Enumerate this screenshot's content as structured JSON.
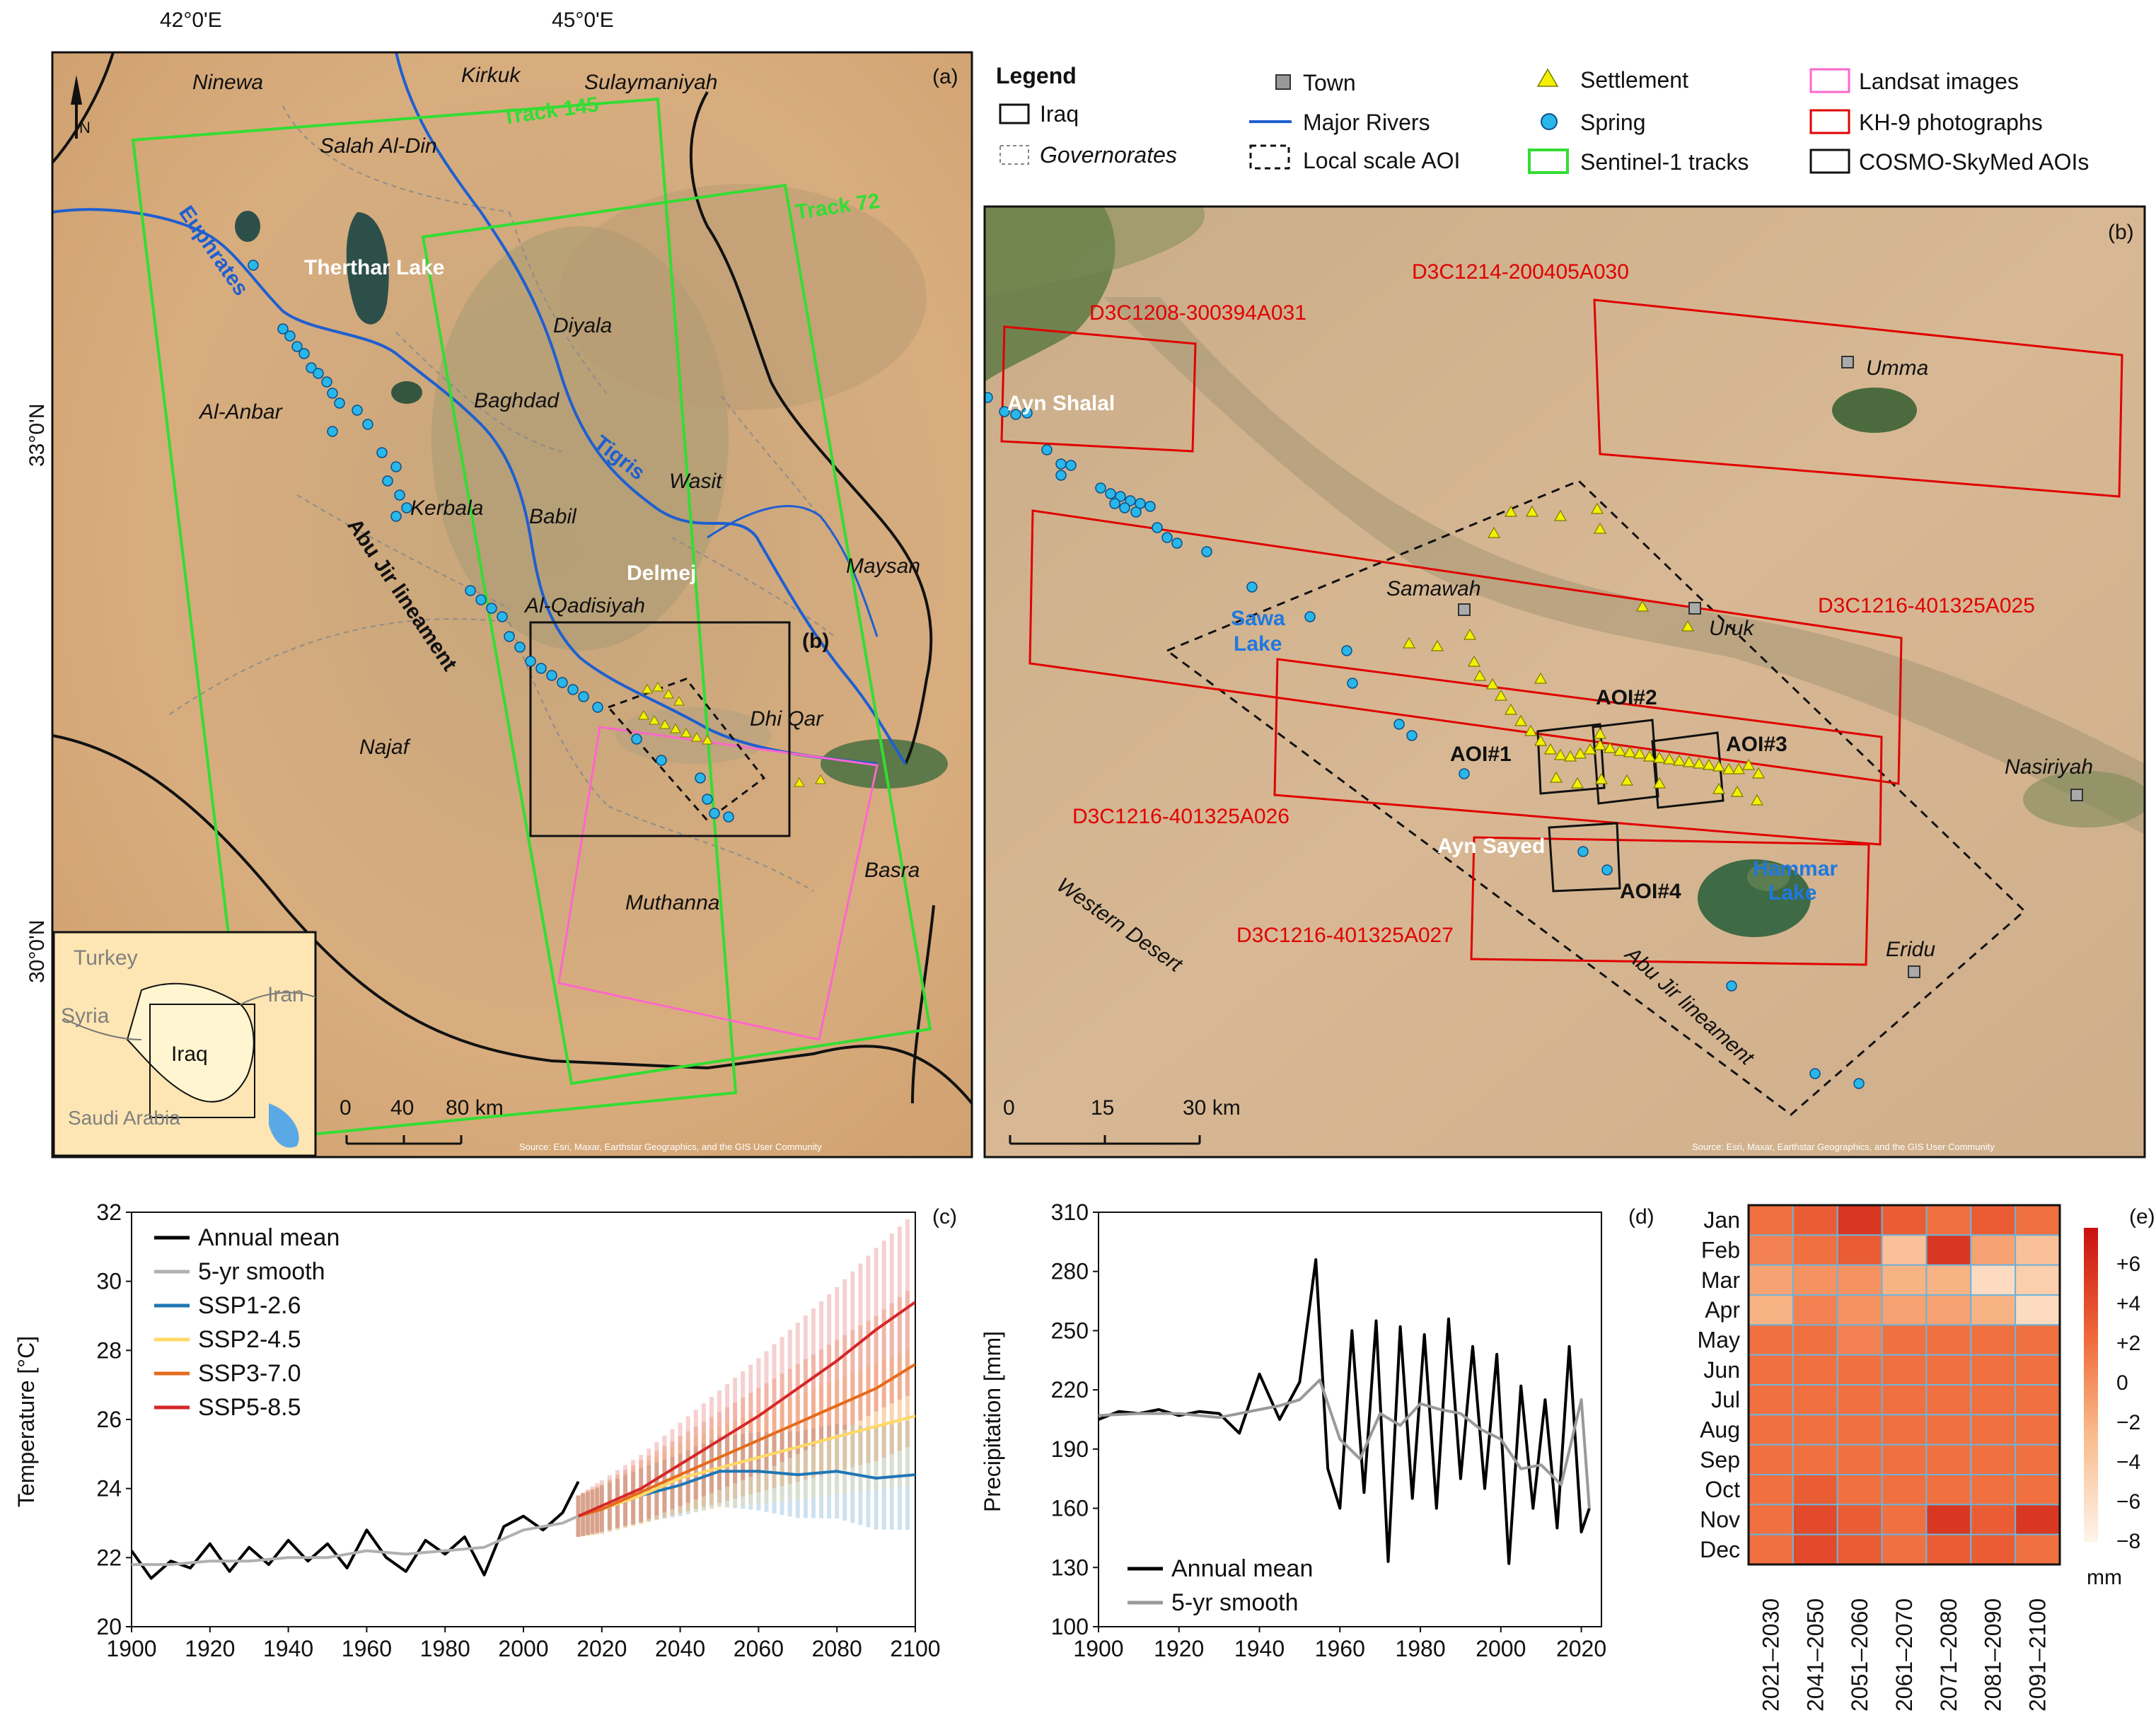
{
  "panel_a": {
    "label": "(a)",
    "lon_labels": [
      "42°0'E",
      "45°0'E"
    ],
    "lat_labels": [
      "33°0'N",
      "30°0'N"
    ],
    "governorates": [
      "Ninewa",
      "Kirkuk",
      "Sulaymaniyah",
      "Salah Al-Din",
      "Diyala",
      "Al-Anbar",
      "Baghdad",
      "Wasit",
      "Kerbala",
      "Babil",
      "Maysan",
      "Al-Qadisiyah",
      "Dhi Qar",
      "Najaf",
      "Muthanna",
      "Basra"
    ],
    "water": [
      "Euphrates",
      "Tigris",
      "Therthar Lake",
      "Delmej"
    ],
    "tracks": [
      "Track 145",
      "Track 72"
    ],
    "lineament": "Abu Jir lineament",
    "inset_box": "(b)",
    "scale": {
      "labels": [
        "0",
        "40",
        "80 km"
      ]
    },
    "inset_map": {
      "labels": [
        "Turkey",
        "Syria",
        "Iran",
        "Iraq",
        "Saudi Arabia"
      ]
    },
    "source": "Source: Esri, Maxar, Earthstar Geographics, and the GIS User Community"
  },
  "legend": {
    "title": "Legend",
    "items": [
      "Iraq",
      "Governorates",
      "Town",
      "Major Rivers",
      "Local scale AOI",
      "Settlement",
      "Spring",
      "Sentinel-1 tracks",
      "Landsat images",
      "KH-9 photographs",
      "COSMO-SkyMed AOIs"
    ]
  },
  "panel_b": {
    "label": "(b)",
    "photos": [
      "D3C1214-200405A030",
      "D3C1208-300394A031",
      "D3C1216-401325A025",
      "D3C1216-401325A026",
      "D3C1216-401325A027"
    ],
    "aois": [
      "AOI#1",
      "AOI#2",
      "AOI#3",
      "AOI#4"
    ],
    "towns": [
      "Umma",
      "Samawah",
      "Uruk",
      "Nasiriyah",
      "Eridu"
    ],
    "places": [
      "Ayn Shalal",
      "Ayn Sayed",
      "Western Desert",
      "Abu Jir lineament"
    ],
    "lakes": [
      "Sawa Lake",
      "Hammar Lake"
    ],
    "scale": {
      "labels": [
        "0",
        "15",
        "30 km"
      ]
    },
    "source": "Source: Esri, Maxar, Earthstar Geographics, and the GIS User Community"
  },
  "chart_data": [
    {
      "type": "line",
      "panel": "(c)",
      "ylabel": "Temperature [°C]",
      "xlim": [
        1900,
        2100
      ],
      "ylim": [
        20,
        32
      ],
      "yticks": [
        20,
        22,
        24,
        26,
        28,
        30,
        32
      ],
      "xticks": [
        1900,
        1920,
        1940,
        1960,
        1980,
        2000,
        2020,
        2040,
        2060,
        2080,
        2100
      ],
      "legend_position": "top-left",
      "series": [
        {
          "name": "Annual mean",
          "color": "#000000",
          "x": [
            1900,
            1905,
            1910,
            1915,
            1920,
            1925,
            1930,
            1935,
            1940,
            1945,
            1950,
            1955,
            1960,
            1965,
            1970,
            1975,
            1980,
            1985,
            1990,
            1995,
            2000,
            2005,
            2010,
            2014
          ],
          "y": [
            22.2,
            21.4,
            21.9,
            21.7,
            22.4,
            21.6,
            22.3,
            21.8,
            22.5,
            21.9,
            22.4,
            21.7,
            22.8,
            22.0,
            21.6,
            22.5,
            22.1,
            22.6,
            21.5,
            22.9,
            23.2,
            22.8,
            23.3,
            24.2
          ]
        },
        {
          "name": "5-yr smooth",
          "color": "#b0b0b0",
          "x": [
            1900,
            1910,
            1920,
            1930,
            1940,
            1950,
            1960,
            1970,
            1980,
            1990,
            2000,
            2010,
            2014
          ],
          "y": [
            21.8,
            21.8,
            21.9,
            21.9,
            22.0,
            22.0,
            22.2,
            22.1,
            22.2,
            22.3,
            22.8,
            23.0,
            23.2
          ]
        },
        {
          "name": "SSP1-2.6",
          "color": "#1f77b4",
          "x": [
            2014,
            2020,
            2030,
            2040,
            2050,
            2060,
            2070,
            2080,
            2090,
            2100
          ],
          "y": [
            23.2,
            23.4,
            23.8,
            24.1,
            24.5,
            24.5,
            24.4,
            24.5,
            24.3,
            24.4
          ]
        },
        {
          "name": "SSP2-4.5",
          "color": "#ffd966",
          "x": [
            2014,
            2020,
            2030,
            2040,
            2050,
            2060,
            2070,
            2080,
            2090,
            2100
          ],
          "y": [
            23.2,
            23.4,
            23.8,
            24.3,
            24.6,
            24.9,
            25.2,
            25.5,
            25.8,
            26.1
          ]
        },
        {
          "name": "SSP3-7.0",
          "color": "#e56a1b",
          "x": [
            2014,
            2020,
            2030,
            2040,
            2050,
            2060,
            2070,
            2080,
            2090,
            2100
          ],
          "y": [
            23.2,
            23.4,
            23.9,
            24.4,
            24.9,
            25.4,
            25.9,
            26.4,
            26.9,
            27.6
          ]
        },
        {
          "name": "SSP5-8.5",
          "color": "#d62728",
          "x": [
            2014,
            2020,
            2030,
            2040,
            2050,
            2060,
            2070,
            2080,
            2090,
            2100
          ],
          "y": [
            23.2,
            23.5,
            24.0,
            24.7,
            25.4,
            26.1,
            26.9,
            27.7,
            28.6,
            29.4
          ]
        }
      ]
    },
    {
      "type": "line",
      "panel": "(d)",
      "ylabel": "Precipitation [mm]",
      "xlim": [
        1900,
        2025
      ],
      "ylim": [
        100,
        310
      ],
      "yticks": [
        100,
        130,
        160,
        190,
        220,
        250,
        280,
        310
      ],
      "xticks": [
        1900,
        1920,
        1940,
        1960,
        1980,
        2000,
        2020
      ],
      "legend_position": "bottom-left",
      "series": [
        {
          "name": "Annual mean",
          "color": "#000000",
          "x": [
            1900,
            1905,
            1910,
            1915,
            1920,
            1925,
            1930,
            1935,
            1940,
            1945,
            1950,
            1954,
            1957,
            1960,
            1963,
            1966,
            1969,
            1972,
            1975,
            1978,
            1981,
            1984,
            1987,
            1990,
            1993,
            1996,
            1999,
            2002,
            2005,
            2008,
            2011,
            2014,
            2017,
            2020,
            2022
          ],
          "y": [
            205,
            209,
            208,
            210,
            207,
            209,
            208,
            198,
            228,
            205,
            224,
            286,
            180,
            160,
            250,
            168,
            255,
            133,
            252,
            165,
            248,
            160,
            256,
            175,
            242,
            170,
            238,
            132,
            222,
            160,
            215,
            150,
            242,
            148,
            160
          ]
        },
        {
          "name": "5-yr smooth",
          "color": "#999999",
          "x": [
            1900,
            1910,
            1920,
            1930,
            1940,
            1945,
            1950,
            1955,
            1960,
            1965,
            1970,
            1975,
            1980,
            1985,
            1990,
            1995,
            2000,
            2005,
            2010,
            2015,
            2020,
            2022
          ],
          "y": [
            207,
            208,
            208,
            206,
            210,
            212,
            215,
            225,
            195,
            185,
            208,
            202,
            213,
            210,
            208,
            200,
            195,
            180,
            182,
            172,
            215,
            160
          ]
        }
      ]
    },
    {
      "type": "heatmap",
      "panel": "(e)",
      "rows": [
        "Jan",
        "Feb",
        "Mar",
        "Apr",
        "May",
        "Jun",
        "Jul",
        "Aug",
        "Sep",
        "Oct",
        "Nov",
        "Dec"
      ],
      "columns": [
        "2021–2030",
        "2041–2050",
        "2051–2060",
        "2061–2070",
        "2071–2080",
        "2081–2090",
        "2091–2100"
      ],
      "colorbar_ticks": [
        "+6",
        "+4",
        "+2",
        "0",
        "−2",
        "−4",
        "−6",
        "−8"
      ],
      "colorbar_unit": "mm",
      "values": [
        [
          1,
          2,
          4,
          2,
          1,
          2,
          1
        ],
        [
          0,
          1,
          2,
          -4,
          4,
          -2,
          -4
        ],
        [
          -2,
          -1,
          -1,
          -3,
          -3,
          -6,
          -5
        ],
        [
          -3,
          0,
          -1,
          -2,
          -2,
          -3,
          -6
        ],
        [
          1,
          1,
          0,
          1,
          1,
          1,
          1
        ],
        [
          1,
          1,
          1,
          1,
          1,
          1,
          1
        ],
        [
          1,
          1,
          1,
          1,
          1,
          1,
          1
        ],
        [
          1,
          1,
          1,
          1,
          1,
          1,
          1
        ],
        [
          1,
          1,
          1,
          1,
          1,
          1,
          1
        ],
        [
          1,
          2,
          1,
          1,
          1,
          1,
          1
        ],
        [
          1,
          3,
          2,
          1,
          4,
          2,
          4
        ],
        [
          1,
          3,
          2,
          1,
          2,
          2,
          1
        ]
      ]
    }
  ]
}
